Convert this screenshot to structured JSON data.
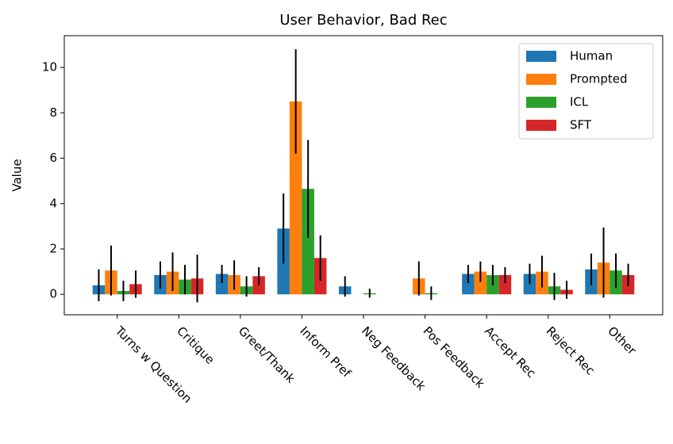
{
  "chart_data": {
    "type": "bar",
    "title": "User Behavior, Bad Rec",
    "y_label": "Value",
    "categories": [
      "Turns w Question",
      "Critique",
      "Greet/Thank",
      "Inform Pref",
      "Neg Feedback",
      "Pos Feedback",
      "Accept Rec",
      "Reject Rec",
      "Other"
    ],
    "series": [
      {
        "name": "Human",
        "color": "#1f77b4",
        "values": [
          0.4,
          0.85,
          0.9,
          2.9,
          0.35,
          0,
          0.9,
          0.9,
          1.1
        ],
        "errors": [
          0.7,
          0.6,
          0.4,
          1.55,
          0.45,
          0,
          0.4,
          0.45,
          0.7
        ]
      },
      {
        "name": "Prompted",
        "color": "#ff7f0e",
        "values": [
          1.05,
          1.0,
          0.85,
          8.5,
          0,
          0.7,
          1.0,
          1.0,
          1.4
        ],
        "errors": [
          1.1,
          0.85,
          0.65,
          2.3,
          0,
          0.75,
          0.45,
          0.7,
          1.55
        ]
      },
      {
        "name": "ICL",
        "color": "#2ca02c",
        "values": [
          0.15,
          0.65,
          0.35,
          4.65,
          0.05,
          0.05,
          0.85,
          0.35,
          1.05
        ],
        "errors": [
          0.45,
          0.65,
          0.45,
          2.15,
          0.2,
          0.3,
          0.45,
          0.6,
          0.75
        ]
      },
      {
        "name": "SFT",
        "color": "#d62728",
        "values": [
          0.45,
          0.7,
          0.8,
          1.6,
          0,
          0,
          0.85,
          0.2,
          0.85
        ],
        "errors": [
          0.6,
          1.05,
          0.4,
          1.0,
          0,
          0,
          0.35,
          0.4,
          0.5
        ]
      }
    ],
    "ylim": [
      -0.9,
      11.4
    ],
    "yticks": [
      0,
      2,
      4,
      6,
      8,
      10
    ],
    "legend": "upper right",
    "grid": false
  }
}
